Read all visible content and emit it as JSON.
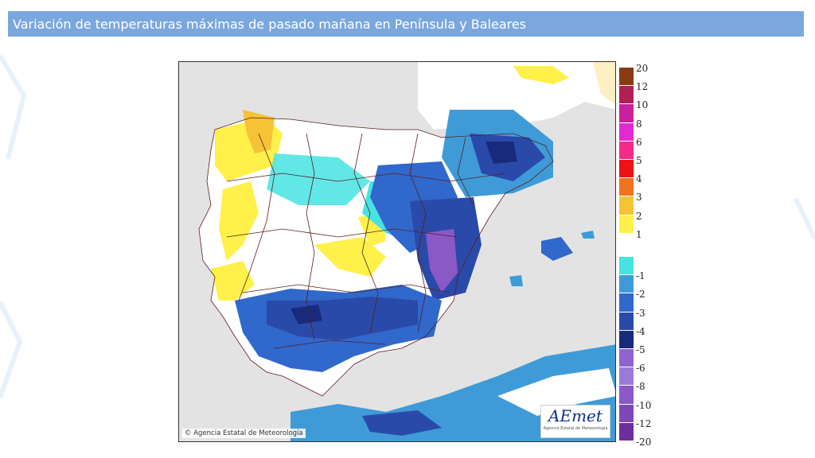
{
  "header": {
    "title": "Variación de temperaturas máximas de pasado mañana en Península y Baleares"
  },
  "map": {
    "copyright": "© Agencia Estatal de Meteorología",
    "logo": {
      "mark": "AEmet",
      "subtitle": "Agencia Estatal de Meteorología"
    }
  },
  "legend": {
    "items": [
      {
        "label": "20",
        "color": "#8a3a12"
      },
      {
        "label": "12",
        "color": "#b11f55"
      },
      {
        "label": "10",
        "color": "#c8209e"
      },
      {
        "label": "8",
        "color": "#e22ad0"
      },
      {
        "label": "6",
        "color": "#f52a89"
      },
      {
        "label": "5",
        "color": "#ee1212"
      },
      {
        "label": "4",
        "color": "#f0731e"
      },
      {
        "label": "3",
        "color": "#f6c236"
      },
      {
        "label": "2",
        "color": "#fff04a"
      },
      {
        "label": "1",
        "color": "#ffffff"
      },
      {
        "label": "-1",
        "color": "#47e3e3"
      },
      {
        "label": "-2",
        "color": "#3f9bd8"
      },
      {
        "label": "-3",
        "color": "#3068cc"
      },
      {
        "label": "-4",
        "color": "#2a4aa9"
      },
      {
        "label": "-5",
        "color": "#182a7a"
      },
      {
        "label": "-6",
        "color": "#8f63d1"
      },
      {
        "label": "-8",
        "color": "#9b7bd9"
      },
      {
        "label": "-10",
        "color": "#8a59c6"
      },
      {
        "label": "-12",
        "color": "#7e48b8"
      },
      {
        "label": "-20",
        "color": "#6c2f9a"
      }
    ]
  }
}
